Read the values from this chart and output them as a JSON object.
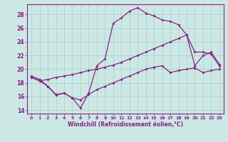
{
  "xlabel": "Windchill (Refroidissement éolien,°C)",
  "background_color": "#cce8e4",
  "grid_color": "#aacccc",
  "line_color": "#882288",
  "xlim": [
    -0.5,
    23.5
  ],
  "ylim": [
    13.5,
    29.5
  ],
  "xticks": [
    0,
    1,
    2,
    3,
    4,
    5,
    6,
    7,
    8,
    9,
    10,
    11,
    12,
    13,
    14,
    15,
    16,
    17,
    18,
    19,
    20,
    21,
    22,
    23
  ],
  "yticks": [
    14,
    16,
    18,
    20,
    22,
    24,
    26,
    28
  ],
  "line1_x": [
    0,
    1,
    2,
    3,
    4,
    5,
    6,
    7,
    8,
    9,
    10,
    11,
    12,
    13,
    14,
    15,
    16,
    17,
    18,
    19,
    20,
    21,
    22,
    23
  ],
  "line1_y": [
    19.0,
    18.5,
    17.5,
    16.2,
    16.5,
    15.8,
    14.3,
    16.5,
    20.5,
    21.5,
    26.7,
    27.5,
    28.5,
    29.0,
    28.2,
    27.8,
    27.2,
    27.0,
    26.5,
    25.0,
    22.5,
    22.5,
    22.2,
    20.5
  ],
  "line2_x": [
    0,
    1,
    2,
    3,
    4,
    5,
    6,
    7,
    8,
    9,
    10,
    11,
    12,
    13,
    14,
    15,
    16,
    17,
    18,
    19,
    20,
    21,
    22,
    23
  ],
  "line2_y": [
    18.8,
    18.3,
    18.5,
    18.8,
    19.0,
    19.2,
    19.5,
    19.8,
    20.0,
    20.3,
    20.6,
    21.0,
    21.5,
    22.0,
    22.5,
    23.0,
    23.5,
    24.0,
    24.5,
    25.0,
    20.5,
    22.0,
    22.5,
    20.7
  ],
  "line3_x": [
    0,
    1,
    2,
    3,
    4,
    5,
    6,
    7,
    8,
    9,
    10,
    11,
    12,
    13,
    14,
    15,
    16,
    17,
    18,
    19,
    20,
    21,
    22,
    23
  ],
  "line3_y": [
    18.8,
    18.3,
    17.5,
    16.3,
    16.5,
    15.8,
    15.5,
    16.3,
    17.0,
    17.5,
    18.0,
    18.5,
    19.0,
    19.5,
    20.0,
    20.3,
    20.5,
    19.5,
    19.8,
    20.0,
    20.2,
    19.5,
    19.8,
    20.0
  ]
}
